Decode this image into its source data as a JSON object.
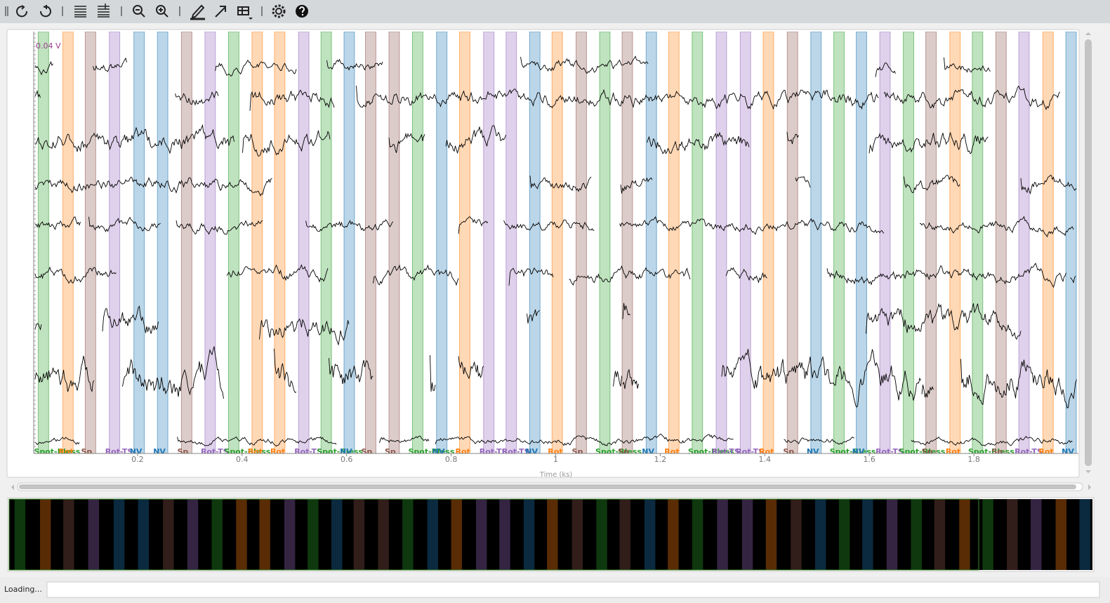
{
  "plot": {
    "scale_label": "0.04 V",
    "x_axis": {
      "label": "Time (ks)",
      "xlim": [
        0,
        2
      ],
      "ticks": [
        0.2,
        0.4,
        0.6,
        0.8,
        1,
        1.2,
        1.4,
        1.6,
        1.8
      ]
    },
    "annotation_types": [
      {
        "label": "Spot-Bless",
        "color": "#2ca02c"
      },
      {
        "label": "Rot",
        "color": "#ff7f0e"
      },
      {
        "label": "Sp",
        "color": "#8c564b"
      },
      {
        "label": "Rot-TS",
        "color": "#9467bd"
      },
      {
        "label": "NV",
        "color": "#1f77b4"
      }
    ],
    "annotations": [
      {
        "onset": 0.01,
        "duration": 0.02,
        "type": 0
      },
      {
        "onset": 0.057,
        "duration": 0.02,
        "type": 1
      },
      {
        "onset": 0.1,
        "duration": 0.02,
        "type": 2
      },
      {
        "onset": 0.146,
        "duration": 0.02,
        "type": 3
      },
      {
        "onset": 0.193,
        "duration": 0.02,
        "type": 4
      },
      {
        "onset": 0.238,
        "duration": 0.02,
        "type": 4
      },
      {
        "onset": 0.284,
        "duration": 0.02,
        "type": 2
      },
      {
        "onset": 0.329,
        "duration": 0.02,
        "type": 3
      },
      {
        "onset": 0.374,
        "duration": 0.02,
        "type": 0
      },
      {
        "onset": 0.419,
        "duration": 0.02,
        "type": 1
      },
      {
        "onset": 0.462,
        "duration": 0.02,
        "type": 1
      },
      {
        "onset": 0.508,
        "duration": 0.02,
        "type": 3
      },
      {
        "onset": 0.551,
        "duration": 0.02,
        "type": 0
      },
      {
        "onset": 0.595,
        "duration": 0.02,
        "type": 4
      },
      {
        "onset": 0.636,
        "duration": 0.02,
        "type": 2
      },
      {
        "onset": 0.681,
        "duration": 0.02,
        "type": 2
      },
      {
        "onset": 0.726,
        "duration": 0.02,
        "type": 0
      },
      {
        "onset": 0.772,
        "duration": 0.02,
        "type": 4
      },
      {
        "onset": 0.816,
        "duration": 0.02,
        "type": 1
      },
      {
        "onset": 0.862,
        "duration": 0.02,
        "type": 3
      },
      {
        "onset": 0.905,
        "duration": 0.02,
        "type": 3
      },
      {
        "onset": 0.95,
        "duration": 0.02,
        "type": 4
      },
      {
        "onset": 0.993,
        "duration": 0.02,
        "type": 1
      },
      {
        "onset": 1.039,
        "duration": 0.02,
        "type": 2
      },
      {
        "onset": 1.084,
        "duration": 0.02,
        "type": 0
      },
      {
        "onset": 1.127,
        "duration": 0.02,
        "type": 2
      },
      {
        "onset": 1.173,
        "duration": 0.02,
        "type": 4
      },
      {
        "onset": 1.216,
        "duration": 0.02,
        "type": 1
      },
      {
        "onset": 1.261,
        "duration": 0.02,
        "type": 0
      },
      {
        "onset": 1.307,
        "duration": 0.02,
        "type": 3
      },
      {
        "onset": 1.353,
        "duration": 0.02,
        "type": 3
      },
      {
        "onset": 1.397,
        "duration": 0.02,
        "type": 1
      },
      {
        "onset": 1.443,
        "duration": 0.02,
        "type": 2
      },
      {
        "onset": 1.488,
        "duration": 0.02,
        "type": 4
      },
      {
        "onset": 1.532,
        "duration": 0.02,
        "type": 0
      },
      {
        "onset": 1.575,
        "duration": 0.02,
        "type": 4
      },
      {
        "onset": 1.62,
        "duration": 0.02,
        "type": 3
      },
      {
        "onset": 1.665,
        "duration": 0.02,
        "type": 0
      },
      {
        "onset": 1.708,
        "duration": 0.02,
        "type": 2
      },
      {
        "onset": 1.754,
        "duration": 0.02,
        "type": 1
      },
      {
        "onset": 1.797,
        "duration": 0.02,
        "type": 0
      },
      {
        "onset": 1.842,
        "duration": 0.02,
        "type": 2
      },
      {
        "onset": 1.886,
        "duration": 0.02,
        "type": 3
      },
      {
        "onset": 1.932,
        "duration": 0.02,
        "type": 1
      },
      {
        "onset": 1.976,
        "duration": 0.02,
        "type": 4
      }
    ]
  },
  "status": {
    "text": "Loading..."
  }
}
